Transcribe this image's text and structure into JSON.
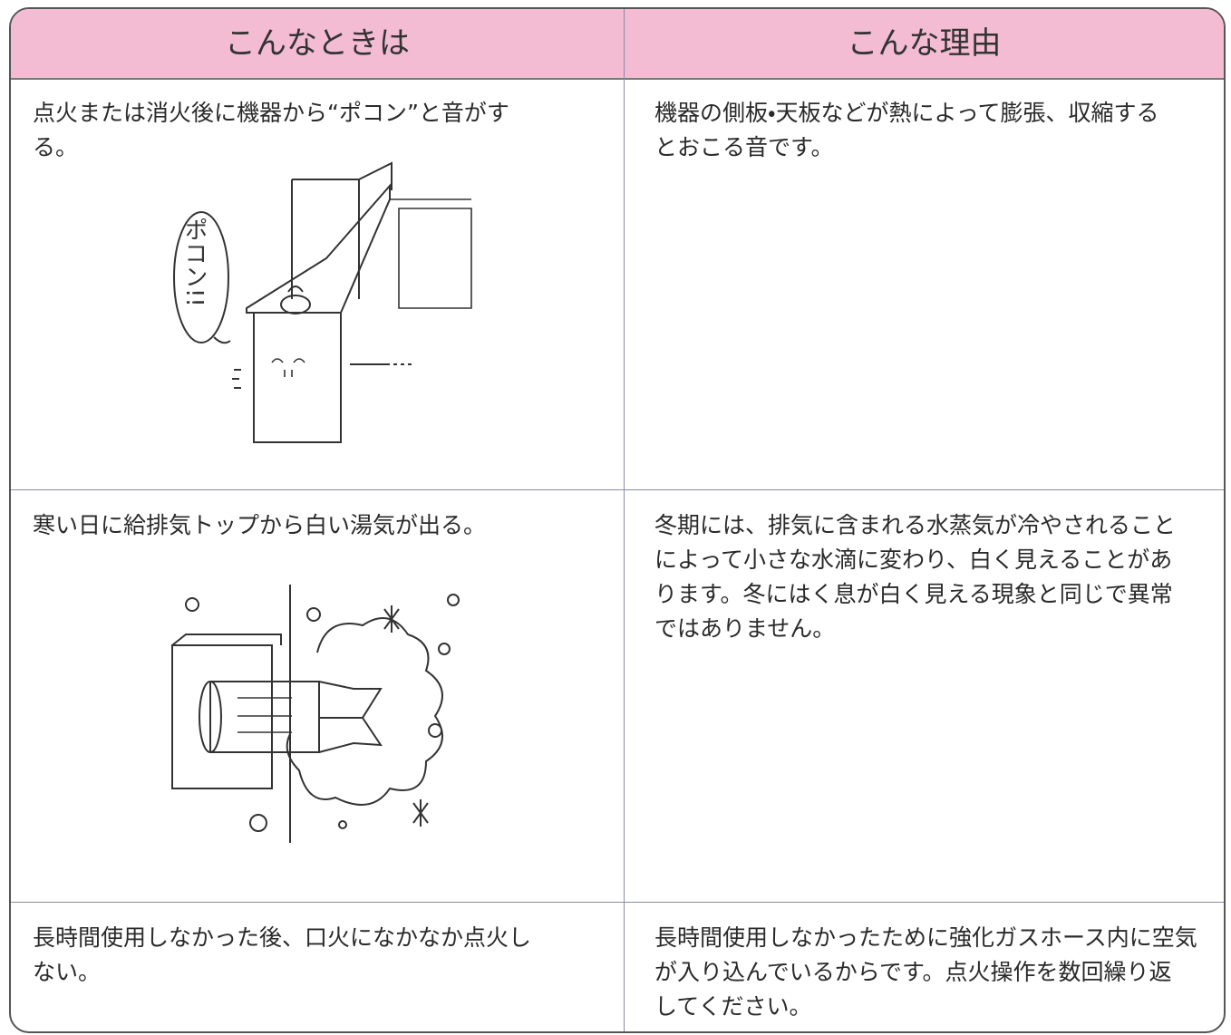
{
  "header": {
    "columns": [
      "こんなときは",
      "こんな理由"
    ]
  },
  "table": {
    "rows": [
      {
        "situation": [
          "点火または消火後に機器から“ポコン”と音がす",
          "る。"
        ],
        "illustration_text": "ポコン!!",
        "reason": [
          "機器の側板・天板などが熱によって膨張、収縮する",
          "とおこる音です。"
        ]
      },
      {
        "situation": [
          "寒い日に給排気トップから白い湯気が出る。"
        ],
        "reason": [
          "冬期には、排気に含まれる水蒸気が冷やされること",
          "によって小さな水滴に変わり、白く見えることがあ",
          "ります。冬にはく息が白く見える現象と同じで異常",
          "ではありません。"
        ]
      },
      {
        "situation": [
          "長時間使用しなかった後、口火になかなか点火し",
          "ない。"
        ],
        "reason": [
          "長時間使用しなかったために強化ガスホース内に空気",
          "が入り込んでいるからです。点火操作を数回繰り返",
          "してください。"
        ]
      }
    ]
  }
}
